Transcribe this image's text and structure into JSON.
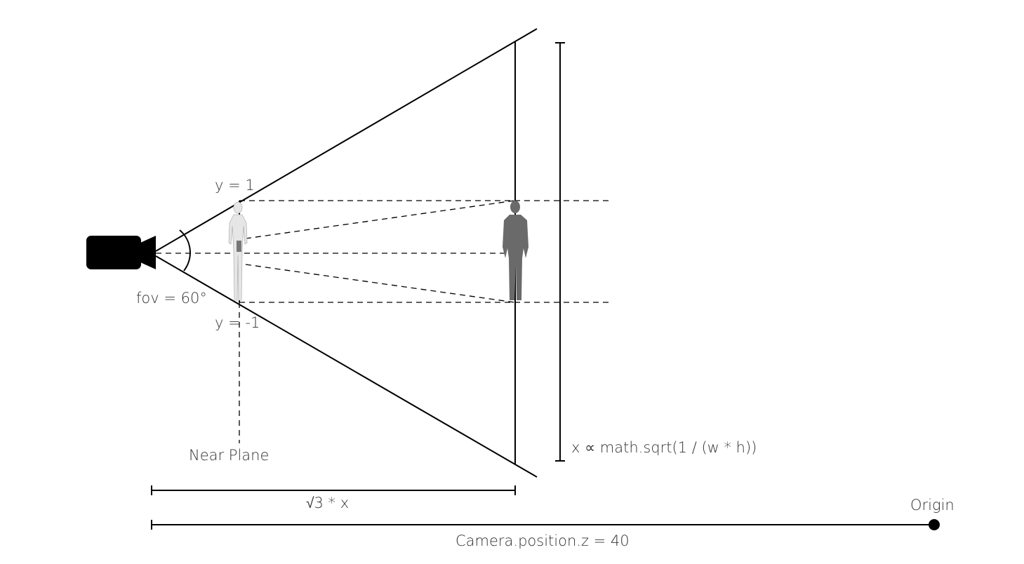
{
  "labels": {
    "y_top": "y = 1",
    "y_bottom": "y = -1",
    "fov": "fov = 60°",
    "near_plane": "Near Plane",
    "height_formula": "x ∝ math.sqrt(1 / (w * h))",
    "distance_formula": "√3 * x",
    "camera_z": "Camera.position.z = 40",
    "origin": "Origin"
  },
  "icons": {
    "camera": "video-camera-icon",
    "person": "human-silhouette-icon"
  },
  "colors": {
    "line": "#000000",
    "text": "#333333",
    "near_person": "#cfcfcf",
    "far_person": "#6a6a6a"
  }
}
